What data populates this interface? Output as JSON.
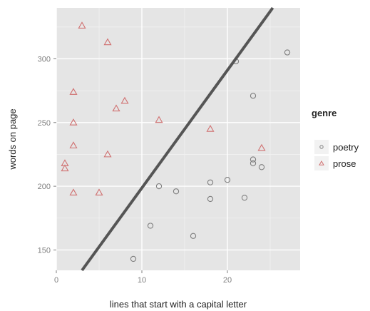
{
  "chart_data": {
    "type": "scatter",
    "title": "",
    "xlabel": "lines that start with a capital letter",
    "ylabel": "words on page",
    "xlim": [
      0,
      28.5
    ],
    "ylim": [
      134,
      340
    ],
    "x_ticks": [
      0,
      10,
      20
    ],
    "y_ticks": [
      150,
      200,
      250,
      300
    ],
    "grid": true,
    "legend": {
      "title": "genre",
      "position": "right",
      "entries": [
        "poetry",
        "prose"
      ]
    },
    "series": [
      {
        "name": "poetry",
        "marker": "circle",
        "color": "#7f7f7f",
        "points": [
          [
            21,
            298
          ],
          [
            27,
            305
          ],
          [
            23,
            271
          ],
          [
            23,
            221
          ],
          [
            23,
            218
          ],
          [
            24,
            215
          ],
          [
            20,
            205
          ],
          [
            18,
            203
          ],
          [
            12,
            200
          ],
          [
            14,
            196
          ],
          [
            22,
            191
          ],
          [
            18,
            190
          ],
          [
            11,
            169
          ],
          [
            16,
            161
          ],
          [
            9,
            143
          ]
        ]
      },
      {
        "name": "prose",
        "marker": "triangle",
        "color": "#d07070",
        "points": [
          [
            3,
            326
          ],
          [
            6,
            313
          ],
          [
            2,
            274
          ],
          [
            8,
            267
          ],
          [
            7,
            261
          ],
          [
            12,
            252
          ],
          [
            2,
            250
          ],
          [
            18,
            245
          ],
          [
            2,
            232
          ],
          [
            24,
            230
          ],
          [
            6,
            225
          ],
          [
            1,
            218
          ],
          [
            1,
            214
          ],
          [
            2,
            195
          ],
          [
            5,
            195
          ]
        ]
      }
    ],
    "trend_line": {
      "color": "#555555",
      "endpoints": [
        [
          3,
          134
        ],
        [
          25.3,
          340
        ]
      ]
    }
  }
}
